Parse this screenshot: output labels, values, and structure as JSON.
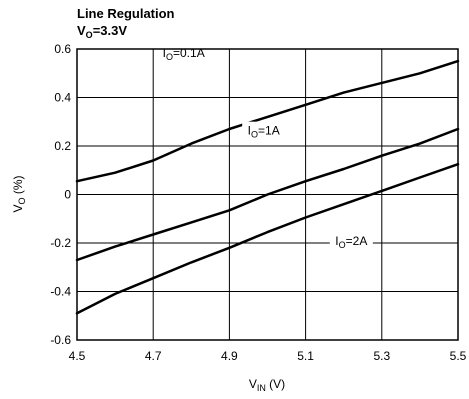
{
  "chart_data": {
    "type": "line",
    "title": "Line Regulation",
    "subtitle": "V",
    "subtitle_sub": "O",
    "subtitle_tail": "=3.3V",
    "xlabel": "V",
    "xlabel_sub": "IN",
    "xlabel_tail": " (V)",
    "ylabel": "V",
    "ylabel_sub": "O",
    "ylabel_tail": " (%)",
    "xlim": [
      4.5,
      5.5
    ],
    "ylim": [
      -0.6,
      0.6
    ],
    "xticks": [
      4.5,
      4.7,
      4.9,
      5.1,
      5.3,
      5.5
    ],
    "xtick_labels": [
      "4.5",
      "4.7",
      "4.9",
      "5.1",
      "5.3",
      "5.5"
    ],
    "yticks": [
      0.6,
      0.4,
      0.2,
      0,
      -0.2,
      -0.4,
      -0.6
    ],
    "ytick_labels": [
      "0.6",
      "0.4",
      "0.2",
      "0",
      "-0.2",
      "-0.4",
      "-0.6"
    ],
    "grid": true,
    "series": [
      {
        "name": "I",
        "name_sub": "O",
        "name_tail": "=0.1A",
        "x": [
          4.5,
          4.6,
          4.7,
          4.8,
          4.9,
          5.0,
          5.1,
          5.2,
          5.3,
          5.4,
          5.5
        ],
        "y": [
          0.055,
          0.09,
          0.14,
          0.21,
          0.27,
          0.32,
          0.37,
          0.42,
          0.46,
          0.5,
          0.55
        ],
        "label_at": [
          4.78,
          0.575
        ]
      },
      {
        "name": "I",
        "name_sub": "O",
        "name_tail": "=1A",
        "x": [
          4.5,
          4.6,
          4.7,
          4.8,
          4.9,
          5.0,
          5.1,
          5.2,
          5.3,
          5.4,
          5.5
        ],
        "y": [
          -0.27,
          -0.215,
          -0.165,
          -0.115,
          -0.065,
          0.0,
          0.055,
          0.105,
          0.16,
          0.21,
          0.27
        ],
        "label_at": [
          4.99,
          0.255
        ]
      },
      {
        "name": "I",
        "name_sub": "O",
        "name_tail": "=2A",
        "x": [
          4.5,
          4.6,
          4.7,
          4.8,
          4.9,
          5.0,
          5.1,
          5.2,
          5.3,
          5.4,
          5.5
        ],
        "y": [
          -0.49,
          -0.41,
          -0.345,
          -0.28,
          -0.22,
          -0.155,
          -0.095,
          -0.04,
          0.015,
          0.07,
          0.125
        ],
        "label_at": [
          5.22,
          -0.2
        ]
      }
    ]
  }
}
